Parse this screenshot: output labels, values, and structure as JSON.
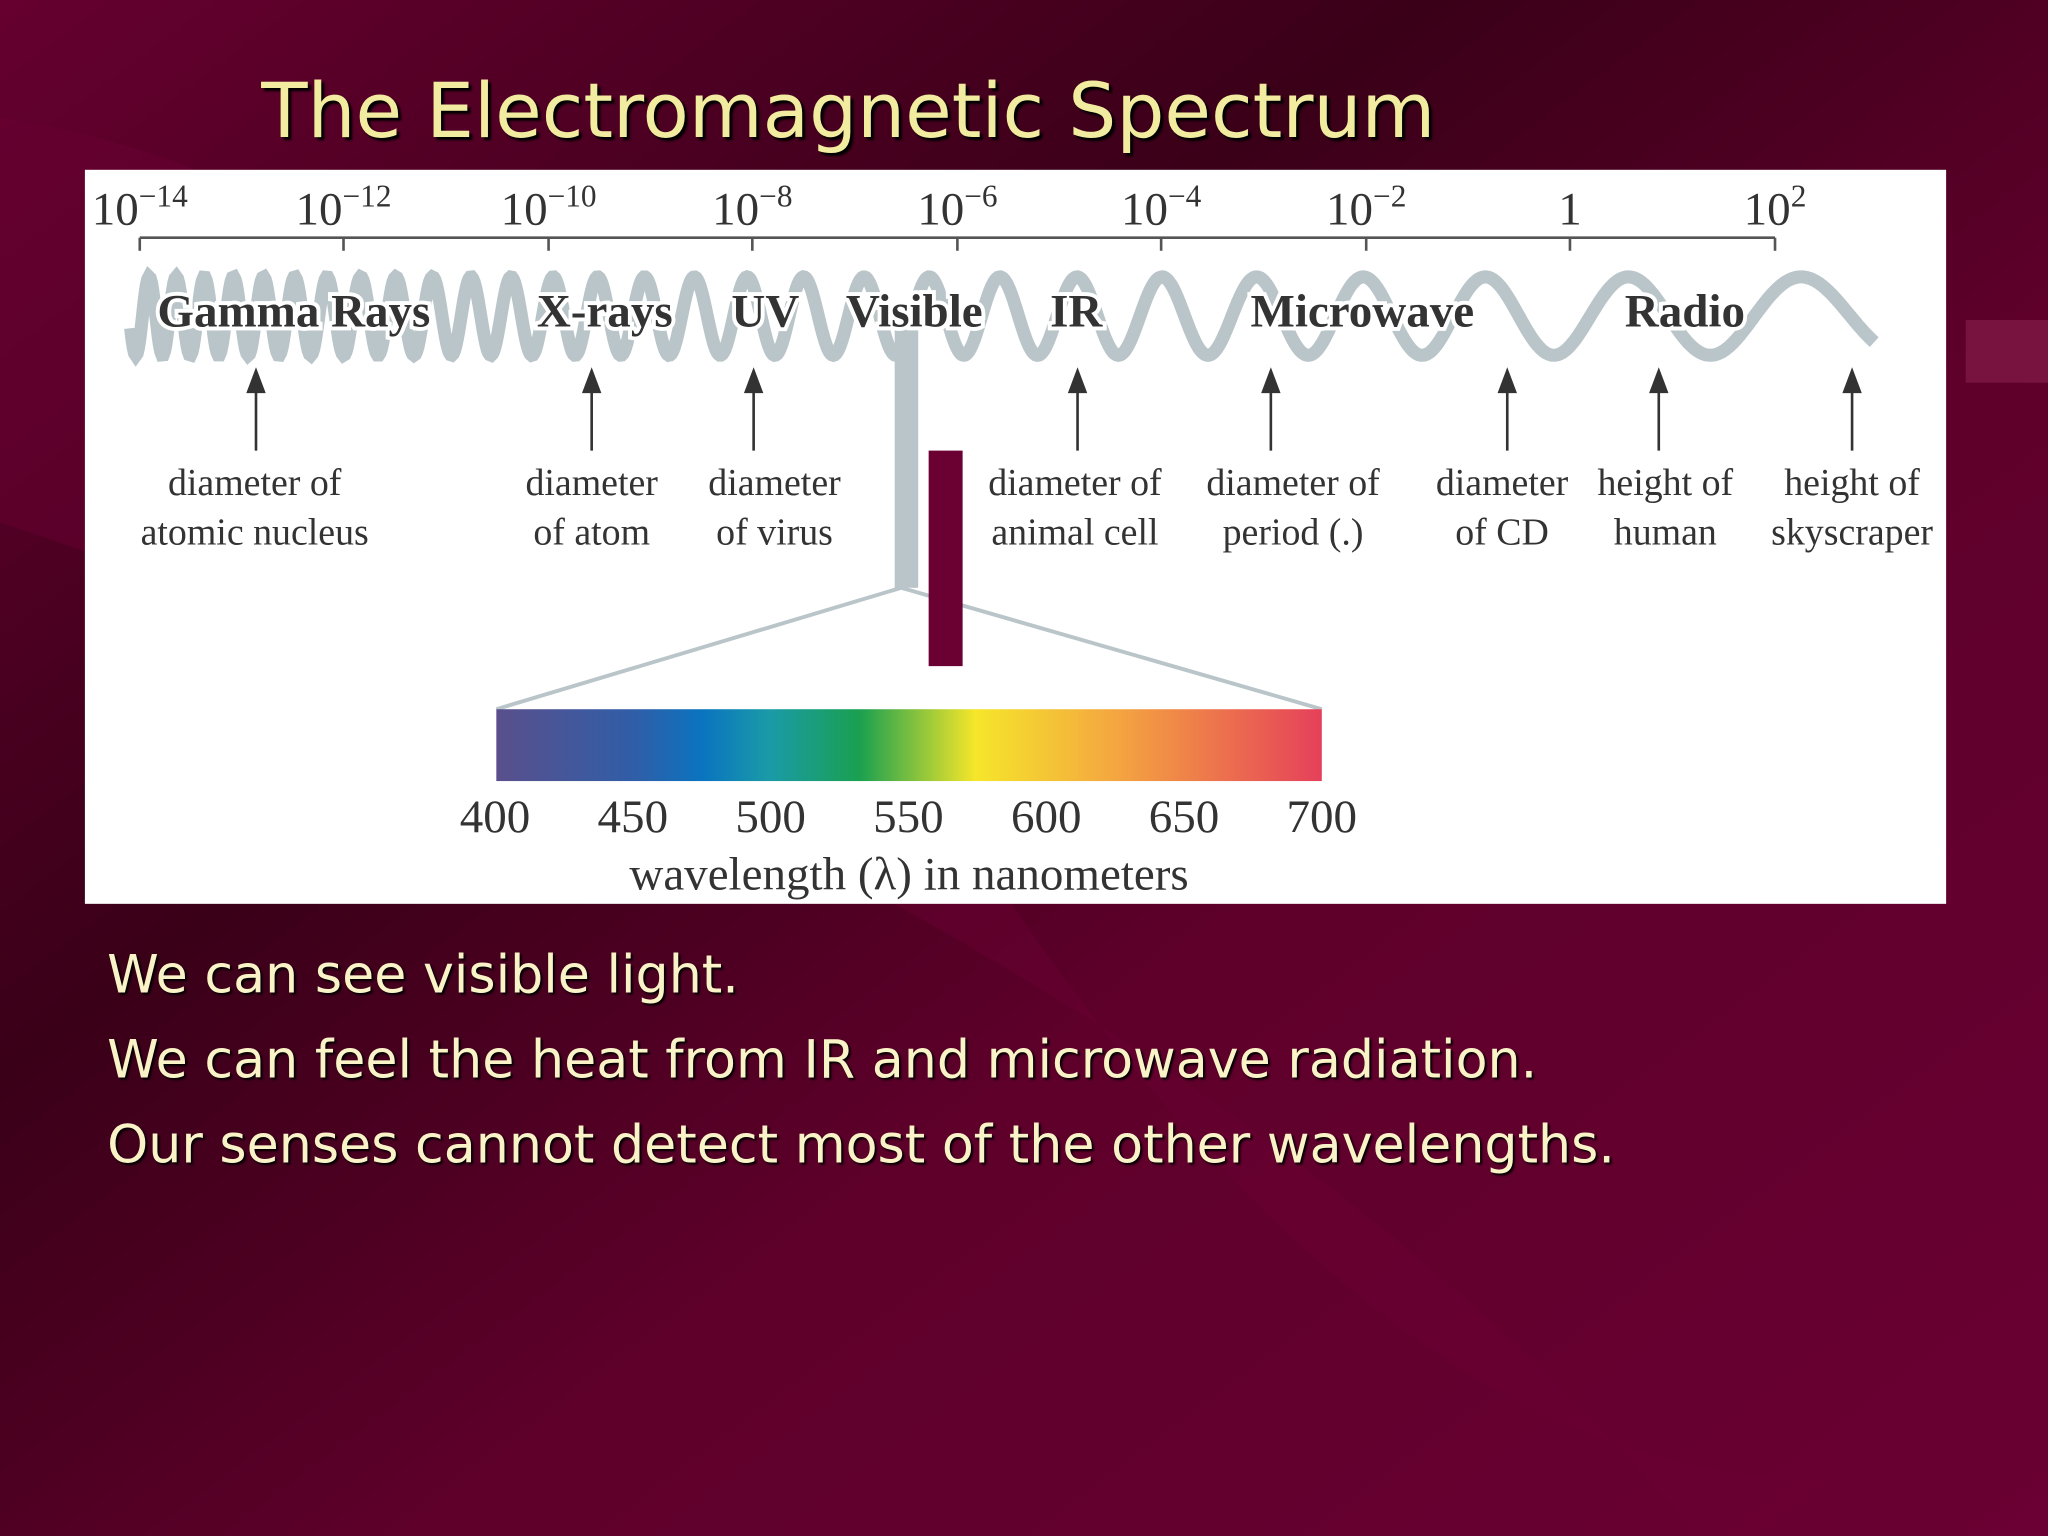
{
  "title": "The Electromagnetic Spectrum",
  "diagram": {
    "scale_labels": [
      {
        "base": "10",
        "exponent": "−14"
      },
      {
        "base": "10",
        "exponent": "−12"
      },
      {
        "base": "10",
        "exponent": "−10"
      },
      {
        "base": "10",
        "exponent": "−8"
      },
      {
        "base": "10",
        "exponent": "−6"
      },
      {
        "base": "10",
        "exponent": "−4"
      },
      {
        "base": "10",
        "exponent": "−2"
      },
      {
        "base": "1"
      },
      {
        "base": "10",
        "exponent": "2"
      }
    ],
    "bands": [
      "Gamma Rays",
      "X-rays",
      "UV",
      "Visible",
      "IR",
      "Microwave",
      "Radio"
    ],
    "objects": [
      [
        "diameter of",
        "atomic nucleus"
      ],
      [
        "diameter",
        "of atom"
      ],
      [
        "diameter",
        "of virus"
      ],
      [
        "diameter of",
        "animal cell"
      ],
      [
        "diameter of",
        "period (.)"
      ],
      [
        "diameter",
        "of CD"
      ],
      [
        "height of",
        "human"
      ],
      [
        "height of",
        "skyscraper"
      ]
    ],
    "visible_ticks": [
      "400",
      "450",
      "500",
      "550",
      "600",
      "650",
      "700"
    ],
    "visible_axis_label": "wavelength (λ) in nanometers"
  },
  "bullets": [
    "We can see visible light.",
    "We can feel the heat from IR and microwave radiation.",
    "Our senses cannot detect most of the other wavelengths."
  ]
}
